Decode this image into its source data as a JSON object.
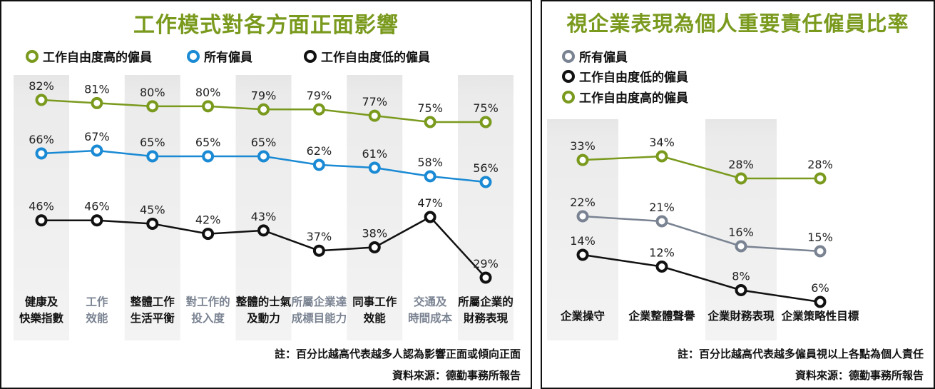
{
  "chart_data": [
    {
      "type": "line",
      "title": "工作模式對各方面正面影響",
      "categories": [
        [
          "健康及",
          "快樂指數"
        ],
        [
          "工作",
          "效能"
        ],
        [
          "整體工作",
          "生活平衡"
        ],
        [
          "對工作的",
          "投入度"
        ],
        [
          "整體的士氣",
          "及動力"
        ],
        [
          "所屬企業達",
          "成標目能力"
        ],
        [
          "同事工作",
          "效能"
        ],
        [
          "交通及",
          "時間成本"
        ],
        [
          "所屬企業的",
          "財務表現"
        ]
      ],
      "category_colors": [
        "#111111",
        "#7a8392",
        "#111111",
        "#7a8392",
        "#111111",
        "#7a8392",
        "#111111",
        "#7a8392",
        "#111111"
      ],
      "series": [
        {
          "name": "工作自由度高的僱員",
          "color": "#7a9a1e",
          "values": [
            82,
            81,
            80,
            80,
            79,
            79,
            77,
            75,
            75
          ]
        },
        {
          "name": "所有僱員",
          "color": "#1a8ad4",
          "values": [
            66,
            67,
            65,
            65,
            65,
            62,
            61,
            58,
            56
          ]
        },
        {
          "name": "工作自由度低的僱員",
          "color": "#111111",
          "values": [
            46,
            46,
            45,
            42,
            43,
            37,
            38,
            47,
            29
          ]
        }
      ],
      "value_suffix": "%",
      "legend_position": "top",
      "note": "註：百分比越高代表越多人認為影響正面或傾向正面",
      "source": "資料來源：德勤事務所報告"
    },
    {
      "type": "line",
      "title": "視企業表現為個人重要責任僱員比率",
      "categories": [
        [
          "企業操守"
        ],
        [
          "企業整體聲譽"
        ],
        [
          "企業財務表現"
        ],
        [
          "企業策略性目標"
        ]
      ],
      "category_colors": [
        "#111111",
        "#111111",
        "#111111",
        "#111111"
      ],
      "series": [
        {
          "name": "所有僱員",
          "color": "#7a8392",
          "values": [
            22,
            21,
            16,
            15
          ]
        },
        {
          "name": "工作自由度低的僱員",
          "color": "#111111",
          "values": [
            14,
            12,
            8,
            6
          ]
        },
        {
          "name": "工作自由度高的僱員",
          "color": "#7a9a1e",
          "values": [
            33,
            34,
            28,
            28
          ]
        }
      ],
      "value_suffix": "%",
      "legend_position": "top-left",
      "note": "註：百分比越高代表越多僱員視以上各點為個人責任",
      "source": "資料來源：德勤事務所報告"
    }
  ]
}
